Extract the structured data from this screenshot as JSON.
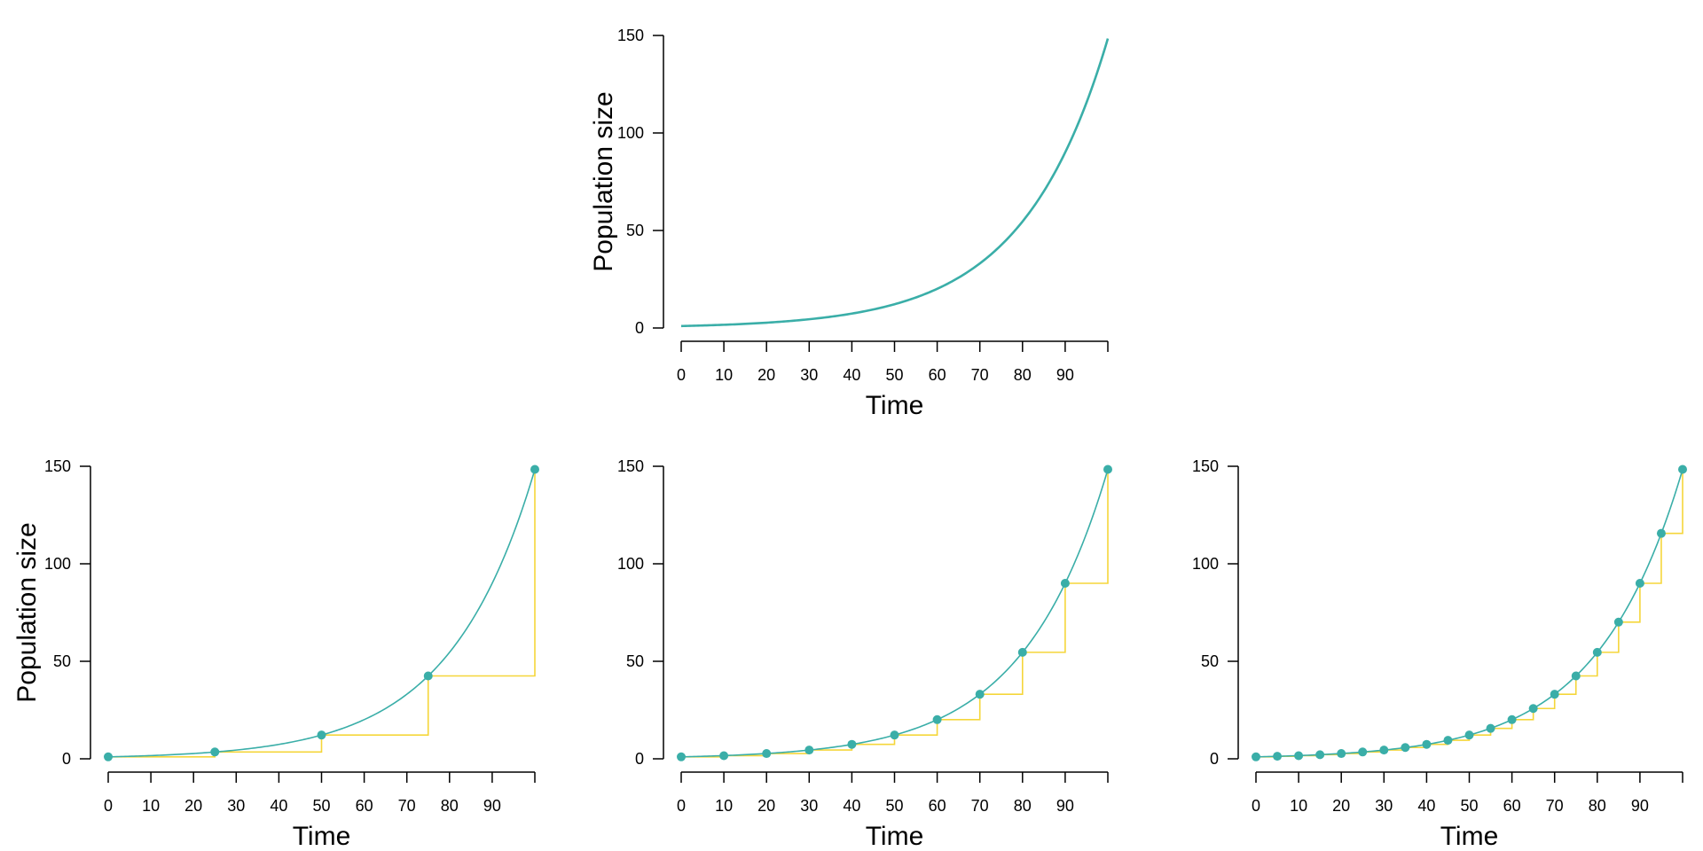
{
  "colors": {
    "curve": "#3aaea8",
    "step": "#f5d63a",
    "axis": "#000000"
  },
  "chart_data": [
    {
      "type": "line",
      "xlabel": "Time",
      "ylabel": "Population size",
      "xlim": [
        0,
        100
      ],
      "ylim": [
        0,
        150
      ],
      "xticks": [
        0,
        10,
        20,
        30,
        40,
        50,
        60,
        70,
        80,
        90
      ],
      "yticks": [
        0,
        50,
        100,
        150
      ],
      "curve": {
        "model": "exponential",
        "N0": 1,
        "N100": 148.4,
        "x_range": [
          0,
          100
        ]
      },
      "step_interval": null,
      "points_x": []
    },
    {
      "type": "line",
      "xlabel": "Time",
      "ylabel": "Population size",
      "xlim": [
        0,
        100
      ],
      "ylim": [
        0,
        150
      ],
      "xticks": [
        0,
        10,
        20,
        30,
        40,
        50,
        60,
        70,
        80,
        90
      ],
      "yticks": [
        0,
        50,
        100,
        150
      ],
      "curve": {
        "model": "exponential",
        "N0": 1,
        "N100": 148.4,
        "x_range": [
          0,
          100
        ]
      },
      "step_interval": 25,
      "points_x": [
        0,
        25,
        50,
        75,
        100
      ],
      "points_y": [
        1,
        3.5,
        12.2,
        42.5,
        148.4
      ]
    },
    {
      "type": "line",
      "xlabel": "Time",
      "ylabel": "",
      "xlim": [
        0,
        100
      ],
      "ylim": [
        0,
        150
      ],
      "xticks": [
        0,
        10,
        20,
        30,
        40,
        50,
        60,
        70,
        80,
        90
      ],
      "yticks": [
        0,
        50,
        100,
        150
      ],
      "curve": {
        "model": "exponential",
        "N0": 1,
        "N100": 148.4,
        "x_range": [
          0,
          100
        ]
      },
      "step_interval": 10,
      "points_x": [
        0,
        10,
        20,
        30,
        40,
        50,
        60,
        70,
        80,
        90,
        100
      ],
      "points_y": [
        1,
        1.6,
        2.7,
        4.5,
        7.4,
        12.2,
        20.1,
        33.1,
        54.6,
        90.0,
        148.4
      ]
    },
    {
      "type": "line",
      "xlabel": "Time",
      "ylabel": "",
      "xlim": [
        0,
        100
      ],
      "ylim": [
        0,
        150
      ],
      "xticks": [
        0,
        10,
        20,
        30,
        40,
        50,
        60,
        70,
        80,
        90
      ],
      "yticks": [
        0,
        50,
        100,
        150
      ],
      "curve": {
        "model": "exponential",
        "N0": 1,
        "N100": 148.4,
        "x_range": [
          0,
          100
        ]
      },
      "step_interval": 5,
      "points_x": [
        0,
        5,
        10,
        15,
        20,
        25,
        30,
        35,
        40,
        45,
        50,
        55,
        60,
        65,
        70,
        75,
        80,
        85,
        90,
        95,
        100
      ],
      "points_y": [
        1,
        1.3,
        1.6,
        2.1,
        2.7,
        3.5,
        4.5,
        5.8,
        7.4,
        9.5,
        12.2,
        15.6,
        20.1,
        25.8,
        33.1,
        42.5,
        54.6,
        70.1,
        90.0,
        115.6,
        148.4
      ]
    }
  ]
}
